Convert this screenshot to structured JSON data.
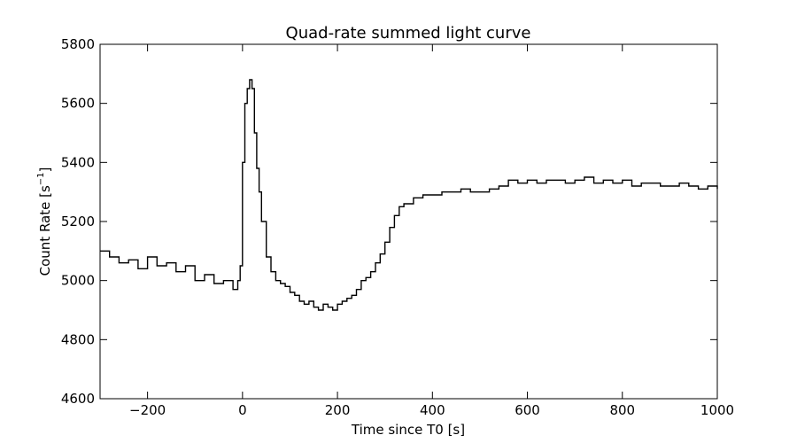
{
  "chart_data": {
    "type": "line",
    "title": "Quad-rate summed light curve",
    "xlabel": "Time since T0 [s]",
    "ylabel_main": "Count Rate [s",
    "ylabel_sup": "−1",
    "ylabel_end": "]",
    "xlim": [
      -300,
      1000
    ],
    "ylim": [
      4600,
      5800
    ],
    "xticks": [
      -200,
      0,
      200,
      400,
      600,
      800,
      1000
    ],
    "yticks": [
      4600,
      4800,
      5000,
      5200,
      5400,
      5600,
      5800
    ],
    "xtick_labels": [
      "−200",
      "0",
      "200",
      "400",
      "600",
      "800",
      "1000"
    ],
    "ytick_labels": [
      "4600",
      "4800",
      "5000",
      "5200",
      "5400",
      "5600",
      "5800"
    ],
    "grid": false,
    "line_color": "#000000",
    "series": [
      {
        "x": [
          -300,
          -280,
          -260,
          -240,
          -220,
          -200,
          -180,
          -160,
          -140,
          -120,
          -100,
          -80,
          -60,
          -40,
          -20,
          -10,
          -5,
          0,
          5,
          10,
          15,
          20,
          25,
          30,
          35,
          40,
          50,
          60,
          70,
          80,
          90,
          100,
          110,
          120,
          130,
          140,
          150,
          160,
          170,
          180,
          190,
          200,
          210,
          220,
          230,
          240,
          250,
          260,
          270,
          280,
          290,
          300,
          310,
          320,
          330,
          340,
          360,
          380,
          400,
          420,
          440,
          460,
          480,
          500,
          520,
          540,
          560,
          580,
          600,
          620,
          640,
          660,
          680,
          700,
          720,
          740,
          760,
          780,
          800,
          820,
          840,
          860,
          880,
          900,
          920,
          940,
          960,
          980,
          1000
        ],
        "values": [
          5100,
          5080,
          5060,
          5070,
          5040,
          5080,
          5050,
          5060,
          5030,
          5050,
          5000,
          5020,
          4990,
          5000,
          4970,
          5000,
          5050,
          5400,
          5600,
          5650,
          5680,
          5650,
          5500,
          5380,
          5300,
          5200,
          5080,
          5030,
          5000,
          4990,
          4980,
          4960,
          4950,
          4930,
          4920,
          4930,
          4910,
          4900,
          4920,
          4910,
          4900,
          4920,
          4930,
          4940,
          4950,
          4970,
          5000,
          5010,
          5030,
          5060,
          5090,
          5130,
          5180,
          5220,
          5250,
          5260,
          5280,
          5290,
          5290,
          5300,
          5300,
          5310,
          5300,
          5300,
          5310,
          5320,
          5340,
          5330,
          5340,
          5330,
          5340,
          5340,
          5330,
          5340,
          5350,
          5330,
          5340,
          5330,
          5340,
          5320,
          5330,
          5330,
          5320,
          5320,
          5330,
          5320,
          5310,
          5320,
          5310
        ]
      }
    ]
  }
}
